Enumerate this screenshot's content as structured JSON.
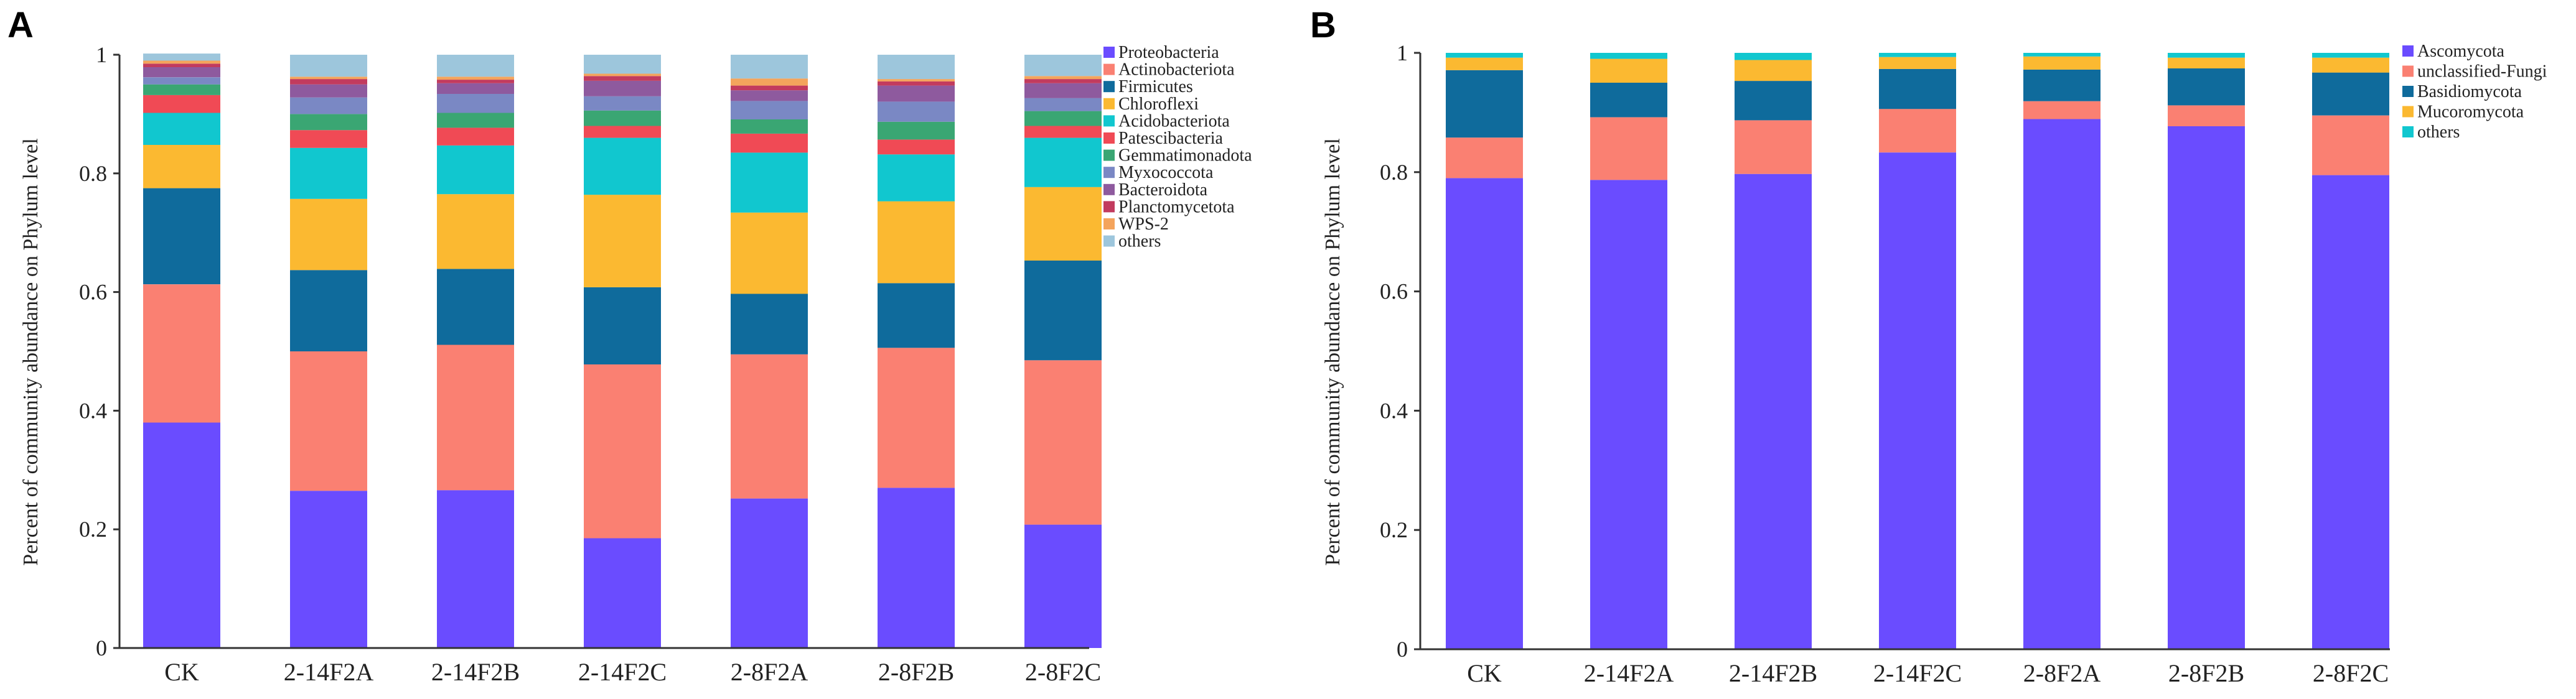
{
  "chart_data": [
    {
      "panel": "A",
      "type": "bar",
      "stacked": true,
      "ylabel": "Percent of community abundance on Phylum level",
      "xlabel": "",
      "ylim": [
        0,
        1
      ],
      "yticks": [
        "0",
        "0.2",
        "0.4",
        "0.6",
        "0.8",
        "1"
      ],
      "legend_position": "right",
      "categories": [
        "CK",
        "2-14F2A",
        "2-14F2B",
        "2-14F2C",
        "2-8F2A",
        "2-8F2B",
        "2-8F2C"
      ],
      "series": [
        {
          "name": "Proteobacteria",
          "color": "#6a4cff",
          "values": [
            0.38,
            0.265,
            0.266,
            0.185,
            0.252,
            0.27,
            0.208
          ]
        },
        {
          "name": "Actinobacteriota",
          "color": "#fa8072",
          "values": [
            0.233,
            0.235,
            0.245,
            0.293,
            0.243,
            0.236,
            0.277
          ]
        },
        {
          "name": "Firmicutes",
          "color": "#0f6b9c",
          "values": [
            0.162,
            0.137,
            0.128,
            0.13,
            0.102,
            0.109,
            0.168
          ]
        },
        {
          "name": "Chloroflexi",
          "color": "#fbb931",
          "values": [
            0.073,
            0.12,
            0.126,
            0.156,
            0.137,
            0.138,
            0.124
          ]
        },
        {
          "name": "Acidobacteriota",
          "color": "#11c7cf",
          "values": [
            0.054,
            0.086,
            0.082,
            0.096,
            0.101,
            0.079,
            0.083
          ]
        },
        {
          "name": "Patescibacteria",
          "color": "#f04a55",
          "values": [
            0.03,
            0.03,
            0.03,
            0.02,
            0.032,
            0.025,
            0.02
          ]
        },
        {
          "name": "Gemmatimonadota",
          "color": "#3aa673",
          "values": [
            0.018,
            0.027,
            0.025,
            0.026,
            0.024,
            0.03,
            0.025
          ]
        },
        {
          "name": "Myxococcota",
          "color": "#7a88c4",
          "values": [
            0.012,
            0.028,
            0.032,
            0.024,
            0.031,
            0.034,
            0.022
          ]
        },
        {
          "name": "Bacteroidota",
          "color": "#8e5a9e",
          "values": [
            0.017,
            0.022,
            0.018,
            0.026,
            0.018,
            0.027,
            0.025
          ]
        },
        {
          "name": "Planctomycetota",
          "color": "#c23b5e",
          "values": [
            0.006,
            0.009,
            0.006,
            0.008,
            0.008,
            0.007,
            0.007
          ]
        },
        {
          "name": "WPS-2",
          "color": "#f4a45c",
          "values": [
            0.005,
            0.004,
            0.005,
            0.004,
            0.012,
            0.004,
            0.005
          ]
        },
        {
          "name": "others",
          "color": "#9dc6dc",
          "values": [
            0.012,
            0.037,
            0.037,
            0.032,
            0.04,
            0.041,
            0.036
          ]
        }
      ]
    },
    {
      "panel": "B",
      "type": "bar",
      "stacked": true,
      "ylabel": "Percent of community abundance on Phylum level",
      "xlabel": "",
      "ylim": [
        0,
        1
      ],
      "yticks": [
        "0",
        "0.2",
        "0.4",
        "0.6",
        "0.8",
        "1"
      ],
      "legend_position": "right",
      "categories": [
        "CK",
        "2-14F2A",
        "2-14F2B",
        "2-14F2C",
        "2-8F2A",
        "2-8F2B",
        "2-8F2C"
      ],
      "series": [
        {
          "name": "Ascomycota",
          "color": "#6a4cff",
          "values": [
            0.79,
            0.787,
            0.797,
            0.833,
            0.889,
            0.877,
            0.795
          ]
        },
        {
          "name": "unclassified-Fungi",
          "color": "#fa8072",
          "values": [
            0.068,
            0.105,
            0.09,
            0.073,
            0.03,
            0.035,
            0.1
          ]
        },
        {
          "name": "Basidiomycota",
          "color": "#0f6b9c",
          "values": [
            0.113,
            0.058,
            0.066,
            0.067,
            0.053,
            0.062,
            0.072
          ]
        },
        {
          "name": "Mucoromycota",
          "color": "#fbb931",
          "values": [
            0.021,
            0.04,
            0.035,
            0.02,
            0.022,
            0.018,
            0.025
          ]
        },
        {
          "name": "others",
          "color": "#11c7cf",
          "values": [
            0.008,
            0.01,
            0.012,
            0.007,
            0.006,
            0.008,
            0.008
          ]
        }
      ]
    }
  ]
}
